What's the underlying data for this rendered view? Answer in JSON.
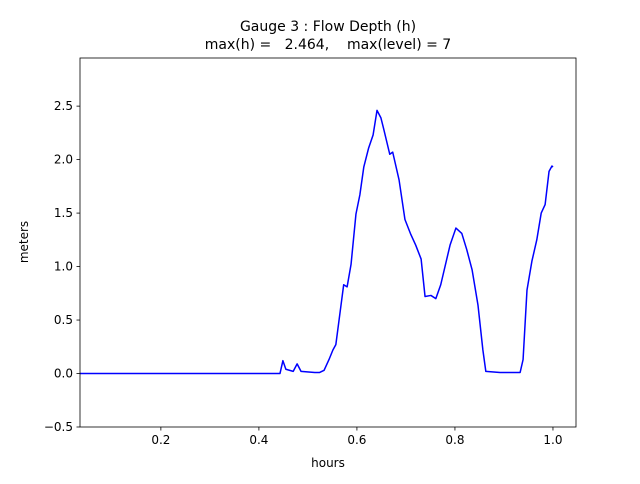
{
  "chart_data": {
    "type": "line",
    "title": "Gauge 3 : Flow Depth (h)",
    "subtitle": "max(h) =   2.464,    max(level) = 7",
    "x_label": "hours",
    "y_label": "meters",
    "xlim": [
      0.035,
      1.047
    ],
    "ylim": [
      -0.5,
      2.95
    ],
    "xticks": [
      0.2,
      0.4,
      0.6,
      0.8,
      {
        "value": 1,
        "label": "1.0"
      }
    ],
    "yticks": [
      {
        "value": -0.5,
        "label": "−0.5"
      },
      {
        "value": 0,
        "label": "0.0"
      },
      0.5,
      {
        "value": 1,
        "label": "1.0"
      },
      1.5,
      {
        "value": 2,
        "label": "2.0"
      },
      2.5
    ],
    "grid": false,
    "x": [
      0.035,
      0.443,
      0.449,
      0.455,
      0.47,
      0.478,
      0.486,
      0.514,
      0.524,
      0.533,
      0.543,
      0.551,
      0.557,
      0.565,
      0.573,
      0.58,
      0.588,
      0.598,
      0.606,
      0.614,
      0.624,
      0.633,
      0.641,
      0.649,
      0.655,
      0.667,
      0.673,
      0.686,
      0.698,
      0.71,
      0.72,
      0.731,
      0.739,
      0.751,
      0.761,
      0.771,
      0.79,
      0.802,
      0.814,
      0.824,
      0.835,
      0.847,
      0.857,
      0.863,
      0.892,
      0.933,
      0.939,
      0.947,
      0.957,
      0.967,
      0.976,
      0.984,
      0.992,
      0.998,
      1.0
    ],
    "series": [
      {
        "name": "h",
        "color": "#0000ff",
        "values": [
          0,
          0,
          0.12,
          0.04,
          0.02,
          0.09,
          0.02,
          0.01,
          0.01,
          0.03,
          0.13,
          0.22,
          0.27,
          0.55,
          0.83,
          0.81,
          1.02,
          1.49,
          1.67,
          1.93,
          2.11,
          2.23,
          2.46,
          2.39,
          2.28,
          2.05,
          2.07,
          1.81,
          1.44,
          1.3,
          1.2,
          1.07,
          0.72,
          0.73,
          0.7,
          0.83,
          1.2,
          1.36,
          1.31,
          1.16,
          0.97,
          0.64,
          0.22,
          0.02,
          0.01,
          0.01,
          0.13,
          0.78,
          1.05,
          1.25,
          1.5,
          1.58,
          1.89,
          1.94,
          1.93
        ]
      }
    ]
  }
}
